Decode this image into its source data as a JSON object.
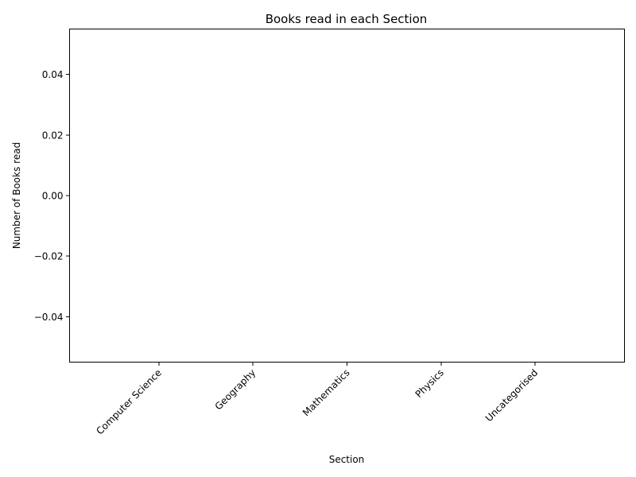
{
  "chart_data": {
    "type": "bar",
    "title": "Books read in each Section",
    "xlabel": "Section",
    "ylabel": "Number of Books read",
    "categories": [
      "Computer Science",
      "Geography",
      "Mathematics",
      "Physics",
      "Uncategorised"
    ],
    "values": [
      0,
      0,
      0,
      0,
      0
    ],
    "ylim": [
      -0.055,
      0.055
    ],
    "yticks": [
      0.04,
      0.02,
      0.0,
      -0.02,
      -0.04
    ],
    "ytick_labels": [
      "0.04",
      "0.02",
      "0.00",
      "−0.02",
      "−0.04"
    ],
    "xtick_rotation": 45,
    "grid": false,
    "colors": {
      "bar": "#1f77b4",
      "axis": "#000000"
    }
  }
}
